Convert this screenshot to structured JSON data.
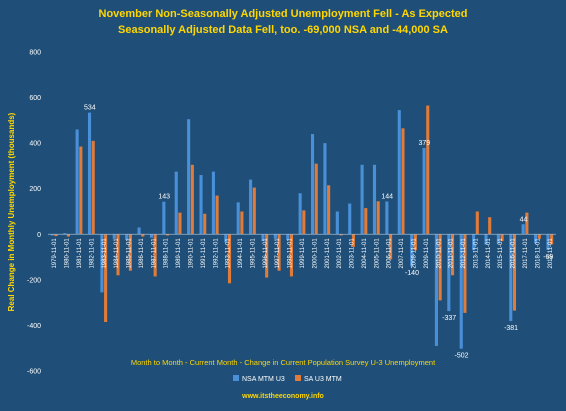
{
  "colors": {
    "background": "#1f4f78",
    "title": "#ffd700",
    "nsa": "#4a90d9",
    "sa": "#e07b39",
    "axis_text": "#ffffff",
    "caption": "#ffd700",
    "gridline": "#5f86a8"
  },
  "chart_data": {
    "type": "bar",
    "title_line1": "November Non-Seasonally Adjusted Unemployment Fell - As Expected",
    "title_line2": "Seasonally Adjusted Data Fell, too. -69,000 NSA and -44,000 SA",
    "ylabel": "Real Change in Monthly Unemployment (thousands)",
    "xlabel": "Month to Month - Current Month - Change in Current Population Survey U-3 Unemployment",
    "source": "www.itstheeconomy.info",
    "ylim": [
      -600,
      800
    ],
    "yticks": [
      -600,
      -400,
      -200,
      0,
      200,
      400,
      600,
      800
    ],
    "grid": false,
    "legend_position": "bottom",
    "categories": [
      "1979-11-01",
      "1980-11-01",
      "1981-11-01",
      "1982-11-01",
      "1983-11-01",
      "1984-11-01",
      "1985-11-01",
      "1986-11-01",
      "1987-11-01",
      "1988-11-01",
      "1989-11-01",
      "1990-11-01",
      "1991-11-01",
      "1992-11-01",
      "1993-11-01",
      "1994-11-01",
      "1995-11-01",
      "1996-11-01",
      "1997-11-01",
      "1998-11-01",
      "1999-11-01",
      "2000-11-01",
      "2001-11-01",
      "2002-11-01",
      "2003-11-01",
      "2004-11-01",
      "2005-11-01",
      "2006-11-01",
      "2007-11-01",
      "2008-11-01",
      "2009-11-01",
      "2010-11-01",
      "2011-11-01",
      "2012-11-01",
      "2013-11-01",
      "2014-11-01",
      "2015-11-01",
      "2016-11-01",
      "2017-11-01",
      "2018-11-01",
      "2019-11-01"
    ],
    "tick_labels": [
      "1979-11-01",
      "1980-11-01",
      "1981-11-01",
      "1982-11-01",
      "1983-11-01",
      "1984-11-01",
      "1985-11-01",
      "1986-11-01",
      "1987-11-01",
      "1988-11-01",
      "1989-11-01",
      "1990-11-01",
      "1991-11-01",
      "1992-11-01",
      "1993-11-01",
      "1994-11-01",
      "1995-11-01",
      "1996-11-01",
      "1997-11-01",
      "1998-11-01",
      "1999-11-01",
      "2000-11-01",
      "2001-11-01",
      "2002-11-01",
      "2003-11-01",
      "2004-11-01",
      "2005-11-01",
      "2006-11-01",
      "2007-11-01",
      "2008-11-01",
      "2009-11-01",
      "2010-11-01",
      "2011-11-01",
      "2012-11-01",
      "2013-11-01",
      "2014-11-01",
      "2015-11-01",
      "2016-11-01",
      "2017-11-01",
      "2018-11-01",
      "2019-11-01"
    ],
    "series": [
      {
        "name": "NSA MTM U3",
        "values": [
          -5,
          5,
          460,
          534,
          -255,
          -20,
          -25,
          30,
          -15,
          143,
          275,
          505,
          260,
          275,
          -35,
          140,
          240,
          -30,
          -20,
          -25,
          180,
          440,
          400,
          100,
          135,
          305,
          305,
          144,
          545,
          -140,
          379,
          -490,
          -337,
          -502,
          -70,
          -45,
          -40,
          -381,
          44,
          -40,
          -69
        ]
      },
      {
        "name": "SA U3 MTM",
        "values": [
          -8,
          -10,
          385,
          410,
          -385,
          -180,
          -160,
          -10,
          -185,
          -5,
          95,
          305,
          90,
          170,
          -215,
          100,
          205,
          -190,
          -160,
          -185,
          105,
          310,
          215,
          -5,
          -55,
          115,
          145,
          -110,
          465,
          -70,
          565,
          -290,
          -180,
          -345,
          100,
          75,
          -30,
          -335,
          95,
          -20,
          -44
        ]
      }
    ],
    "data_labels": [
      {
        "series": 0,
        "index": 3,
        "text": "534"
      },
      {
        "series": 0,
        "index": 9,
        "text": "143"
      },
      {
        "series": 0,
        "index": 27,
        "text": "144"
      },
      {
        "series": 0,
        "index": 29,
        "text": "-140"
      },
      {
        "series": 0,
        "index": 30,
        "text": "379"
      },
      {
        "series": 0,
        "index": 32,
        "text": "-337"
      },
      {
        "series": 0,
        "index": 33,
        "text": "-502"
      },
      {
        "series": 0,
        "index": 37,
        "text": "-381"
      },
      {
        "series": 0,
        "index": 38,
        "text": "44"
      },
      {
        "series": 0,
        "index": 40,
        "text": "-69"
      }
    ]
  }
}
